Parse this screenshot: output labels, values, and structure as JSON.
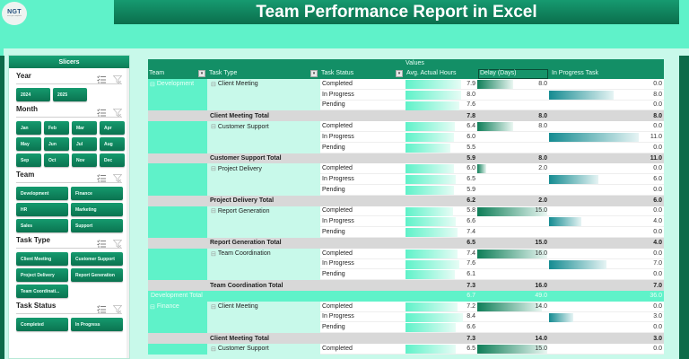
{
  "header": {
    "logo_text": "NGT",
    "logo_subtext": "next gen template",
    "title": "Team Performance Report in Excel"
  },
  "slicers": {
    "pane_title": "Slicers",
    "groups": [
      {
        "title": "Year",
        "items": [
          "2024",
          "2025"
        ]
      },
      {
        "title": "Month",
        "items": [
          "Jan",
          "Feb",
          "Mar",
          "Apr",
          "May",
          "Jun",
          "Jul",
          "Aug",
          "Sep",
          "Oct",
          "Nov",
          "Dec"
        ]
      },
      {
        "title": "Team",
        "items": [
          "Development",
          "Finance",
          "HR",
          "Marketing",
          "Sales",
          "Support"
        ]
      },
      {
        "title": "Task Type",
        "items": [
          "Client Meeting",
          "Customer Support",
          "Project Delivery",
          "Report Generation",
          "Team Coordinati..."
        ]
      },
      {
        "title": "Task Status",
        "items": [
          "Completed",
          "In Progress"
        ]
      }
    ]
  },
  "pivot": {
    "values_label": "Values",
    "headers": {
      "team": "Team",
      "task_type": "Task Type",
      "task_status": "Task Status",
      "avg_hours": "Avg. Actual Hours",
      "delay": "Delay (Days)",
      "in_progress": "In Progress Task"
    },
    "rows": [
      {
        "kind": "data",
        "team": "Development",
        "type": "Client Meeting",
        "status": "Completed",
        "hours": "7.9",
        "delay": "8.0",
        "prog": "0.0",
        "hours_bar": 62,
        "delay_bar": 40,
        "prog_bar": 0
      },
      {
        "kind": "data",
        "team": "",
        "type": "",
        "status": "In Progress",
        "hours": "8.0",
        "delay": "",
        "prog": "8.0",
        "hours_bar": 62,
        "delay_bar": 0,
        "prog_bar": 72
      },
      {
        "kind": "data",
        "team": "",
        "type": "",
        "status": "Pending",
        "hours": "7.6",
        "delay": "",
        "prog": "0.0",
        "hours_bar": 60,
        "delay_bar": 0,
        "prog_bar": 0
      },
      {
        "kind": "total",
        "label": "Client Meeting Total",
        "hours": "7.8",
        "delay": "8.0",
        "prog": "8.0"
      },
      {
        "kind": "data",
        "team": "",
        "type": "Customer Support",
        "status": "Completed",
        "hours": "6.4",
        "delay": "8.0",
        "prog": "0.0",
        "hours_bar": 55,
        "delay_bar": 40,
        "prog_bar": 0
      },
      {
        "kind": "data",
        "team": "",
        "type": "",
        "status": "In Progress",
        "hours": "6.0",
        "delay": "",
        "prog": "11.0",
        "hours_bar": 54,
        "delay_bar": 0,
        "prog_bar": 100
      },
      {
        "kind": "data",
        "team": "",
        "type": "",
        "status": "Pending",
        "hours": "5.5",
        "delay": "",
        "prog": "0.0",
        "hours_bar": 50,
        "delay_bar": 0,
        "prog_bar": 0
      },
      {
        "kind": "total",
        "label": "Customer Support Total",
        "hours": "5.9",
        "delay": "8.0",
        "prog": "11.0"
      },
      {
        "kind": "data",
        "team": "",
        "type": "Project Delivery",
        "status": "Completed",
        "hours": "6.0",
        "delay": "2.0",
        "prog": "0.0",
        "hours_bar": 54,
        "delay_bar": 10,
        "prog_bar": 0
      },
      {
        "kind": "data",
        "team": "",
        "type": "",
        "status": "In Progress",
        "hours": "6.5",
        "delay": "",
        "prog": "6.0",
        "hours_bar": 56,
        "delay_bar": 0,
        "prog_bar": 55
      },
      {
        "kind": "data",
        "team": "",
        "type": "",
        "status": "Pending",
        "hours": "5.9",
        "delay": "",
        "prog": "0.0",
        "hours_bar": 54,
        "delay_bar": 0,
        "prog_bar": 0
      },
      {
        "kind": "total",
        "label": "Project Delivery Total",
        "hours": "6.2",
        "delay": "2.0",
        "prog": "6.0"
      },
      {
        "kind": "data",
        "team": "",
        "type": "Report Generation",
        "status": "Completed",
        "hours": "5.8",
        "delay": "15.0",
        "prog": "0.0",
        "hours_bar": 53,
        "delay_bar": 78,
        "prog_bar": 0
      },
      {
        "kind": "data",
        "team": "",
        "type": "",
        "status": "In Progress",
        "hours": "6.6",
        "delay": "",
        "prog": "4.0",
        "hours_bar": 56,
        "delay_bar": 0,
        "prog_bar": 36
      },
      {
        "kind": "data",
        "team": "",
        "type": "",
        "status": "Pending",
        "hours": "7.4",
        "delay": "",
        "prog": "0.0",
        "hours_bar": 58,
        "delay_bar": 0,
        "prog_bar": 0
      },
      {
        "kind": "total",
        "label": "Report Generation Total",
        "hours": "6.5",
        "delay": "15.0",
        "prog": "4.0"
      },
      {
        "kind": "data",
        "team": "",
        "type": "Team Coordination",
        "status": "Completed",
        "hours": "7.4",
        "delay": "16.0",
        "prog": "0.0",
        "hours_bar": 58,
        "delay_bar": 78,
        "prog_bar": 0
      },
      {
        "kind": "data",
        "team": "",
        "type": "",
        "status": "In Progress",
        "hours": "7.6",
        "delay": "",
        "prog": "7.0",
        "hours_bar": 60,
        "delay_bar": 0,
        "prog_bar": 64
      },
      {
        "kind": "data",
        "team": "",
        "type": "",
        "status": "Pending",
        "hours": "6.1",
        "delay": "",
        "prog": "0.0",
        "hours_bar": 55,
        "delay_bar": 0,
        "prog_bar": 0
      },
      {
        "kind": "total",
        "label": "Team Coordination Total",
        "hours": "7.3",
        "delay": "16.0",
        "prog": "7.0"
      },
      {
        "kind": "grand",
        "label": "Development Total",
        "hours": "6.7",
        "delay": "49.0",
        "prog": "36.0"
      },
      {
        "kind": "data",
        "team": "Finance",
        "type": "Client Meeting",
        "status": "Completed",
        "hours": "7.2",
        "delay": "14.0",
        "prog": "0.0",
        "hours_bar": 58,
        "delay_bar": 72,
        "prog_bar": 0
      },
      {
        "kind": "data",
        "team": "",
        "type": "",
        "status": "In Progress",
        "hours": "8.4",
        "delay": "",
        "prog": "3.0",
        "hours_bar": 64,
        "delay_bar": 0,
        "prog_bar": 27
      },
      {
        "kind": "data",
        "team": "",
        "type": "",
        "status": "Pending",
        "hours": "6.6",
        "delay": "",
        "prog": "0.0",
        "hours_bar": 56,
        "delay_bar": 0,
        "prog_bar": 0
      },
      {
        "kind": "total",
        "label": "Client Meeting Total",
        "hours": "7.3",
        "delay": "14.0",
        "prog": "3.0"
      },
      {
        "kind": "data",
        "team": "",
        "type": "Customer Support",
        "status": "Completed",
        "hours": "6.5",
        "delay": "15.0",
        "prog": "0.0",
        "hours_bar": 56,
        "delay_bar": 78,
        "prog_bar": 0
      }
    ]
  }
}
